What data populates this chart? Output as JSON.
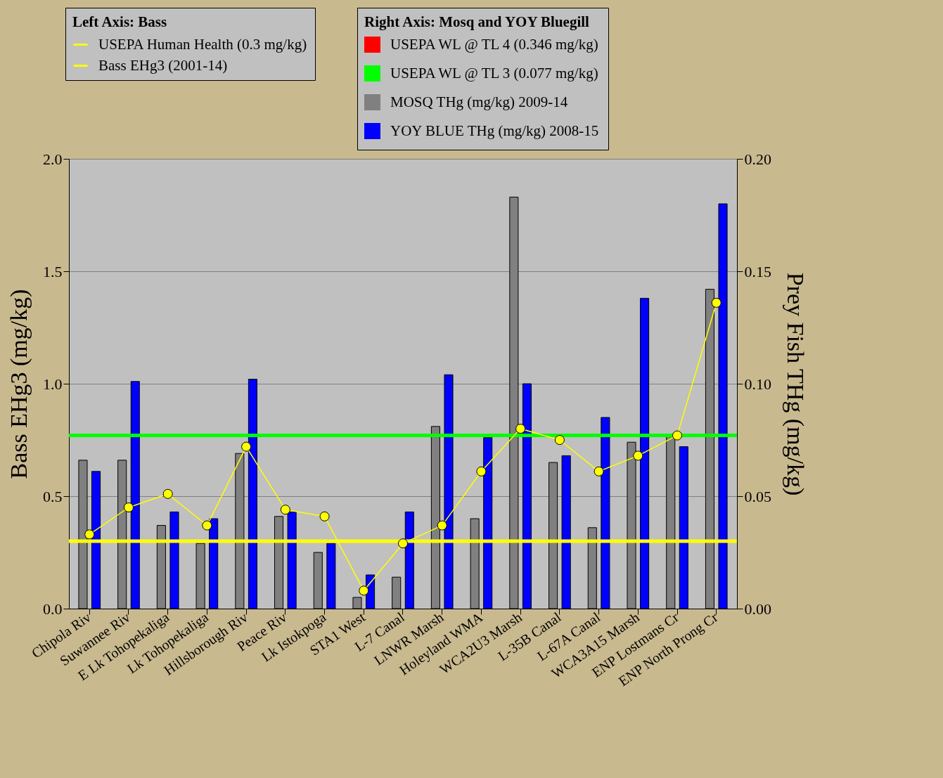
{
  "chart_data": {
    "type": "bar",
    "ylabel": "Bass EHg3 (mg/kg)",
    "y2label": "Prey Fish THg (mg/kg)",
    "annotations": [
      "Left Axis: Bass",
      "Right Axis: Mosq and YOY Bluegill"
    ],
    "categories": [
      "Chipola Riv",
      "Suwannee Riv",
      "E Lk Tohopekaliga",
      "Lk Tohopekaliga",
      "Hillsborough Riv",
      "Peace Riv",
      "Lk Istokpoga",
      "STA1 West",
      "L-7 Canal",
      "LNWR Marsh",
      "Holeyland WMA",
      "WCA2U3 Marsh",
      "L-35B Canal",
      "L-67A Canal",
      "WCA3A15 Marsh",
      "ENP Lostmans Cr",
      "ENP North Prong Cr"
    ],
    "series": [
      {
        "name": "Bass EHg3 (2001-14)",
        "type": "line",
        "axis": "y",
        "color": "#ffff00",
        "marker": "circle",
        "values": [
          0.33,
          0.45,
          0.51,
          0.37,
          0.72,
          0.44,
          0.41,
          0.08,
          0.29,
          0.37,
          0.61,
          0.8,
          0.75,
          0.61,
          0.68,
          0.77,
          1.36
        ]
      },
      {
        "name": "USEPA WL @ TL 4 (0.346 mg/kg)",
        "type": "line",
        "axis": "y2",
        "color": "#ff0000",
        "values": [
          null,
          null,
          null,
          null,
          null,
          null,
          null,
          null,
          null,
          null,
          null,
          null,
          null,
          null,
          null,
          null,
          null
        ]
      },
      {
        "name": "MOSQ THg (mg/kg) 2009-14",
        "axis": "y2",
        "color": "#808080",
        "values": [
          0.066,
          0.066,
          0.037,
          0.029,
          0.069,
          0.041,
          0.025,
          0.005,
          0.014,
          0.081,
          0.04,
          0.183,
          0.065,
          0.036,
          0.074,
          0.077,
          0.142
        ]
      },
      {
        "name": "YOY BLUE THg (mg/kg) 2008-15",
        "axis": "y2",
        "color": "#0000ff",
        "values": [
          0.061,
          0.101,
          0.043,
          0.04,
          0.102,
          0.043,
          0.029,
          0.015,
          0.043,
          0.104,
          0.076,
          0.1,
          0.068,
          0.085,
          0.138,
          0.072,
          0.18
        ]
      }
    ],
    "ref_lines": [
      {
        "axis": "y",
        "value": 0.3,
        "label": "USEPA Human Health (0.3 mg/kg)",
        "color": "#ffff00"
      },
      {
        "axis": "y2",
        "value": 0.077,
        "label": "USEPA WL @ TL 3 (0.077 mg/kg)",
        "color": "#00ff00"
      }
    ],
    "ylim": [
      0,
      2
    ],
    "yticks": [
      {
        "value": 0,
        "label": "0.0"
      },
      0.5,
      {
        "value": 1,
        "label": "1.0"
      },
      1.5,
      {
        "value": 2,
        "label": "2.0"
      }
    ],
    "y2lim": [
      0,
      0.2
    ],
    "y2ticks": [
      {
        "value": 0,
        "label": "0.00"
      },
      0.05,
      {
        "value": 0.1,
        "label": "0.10"
      },
      0.15,
      {
        "value": 0.2,
        "label": "0.20"
      }
    ],
    "grid": "y",
    "legend": "top"
  }
}
